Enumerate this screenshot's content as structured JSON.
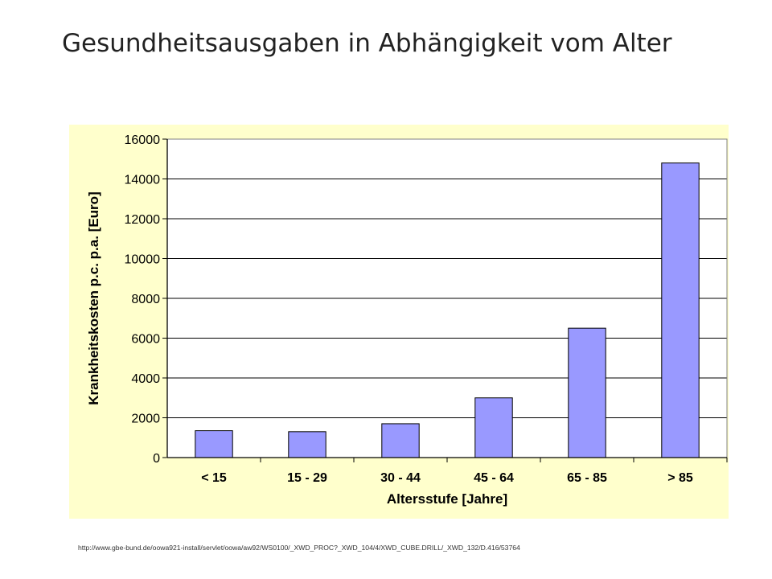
{
  "slide": {
    "title": "Gesundheitsausgaben in Abhängigkeit vom Alter",
    "source": "http://www.gbe-bund.de/oowa921-install/servlet/oowa/aw92/WS0100/_XWD_PROC?_XWD_104/4/XWD_CUBE.DRILL/_XWD_132/D.416/53764"
  },
  "colors": {
    "panel_background": "#FFFFCC",
    "plot_background": "#FFFFFF",
    "bar_fill": "#9999FF",
    "bar_stroke": "#000000"
  },
  "chart_data": {
    "type": "bar",
    "title": "",
    "xlabel": "Altersstufe [Jahre]",
    "ylabel": "Krankheitskosten p.c. p.a. [Euro]",
    "categories": [
      "< 15",
      "15 - 29",
      "30 - 44",
      "45 - 64",
      "65 - 85",
      "> 85"
    ],
    "values": [
      1350,
      1300,
      1700,
      3000,
      6500,
      14800
    ],
    "ylim": [
      0,
      16000
    ],
    "yticks": [
      "0",
      "2000",
      "4000",
      "6000",
      "8000",
      "10000",
      "12000",
      "14000",
      "16000"
    ],
    "grid": true,
    "legend": "none"
  }
}
